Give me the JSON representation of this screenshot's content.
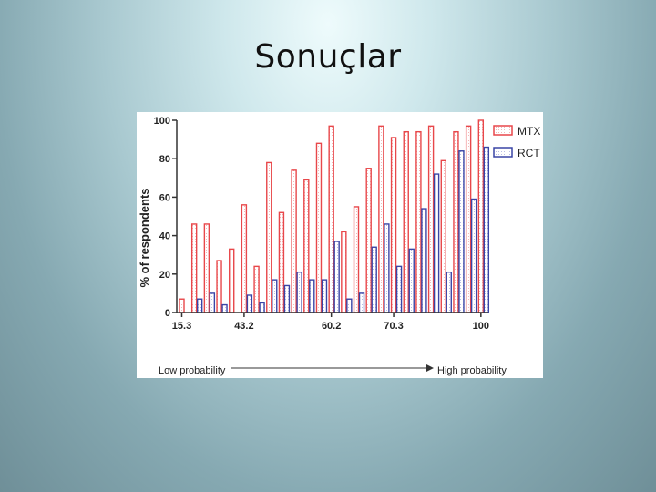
{
  "slide": {
    "title": "Sonuçlar"
  },
  "chart_data": {
    "type": "bar",
    "title": "",
    "xlabel": "",
    "ylabel": "% of respondents",
    "ylim": [
      0,
      100
    ],
    "yticks": [
      "0",
      "20",
      "40",
      "60",
      "80",
      "100"
    ],
    "xticks": [
      {
        "label": "15.3",
        "index": 0
      },
      {
        "label": "43.2",
        "index": 5
      },
      {
        "label": "60.2",
        "index": 12
      },
      {
        "label": "70.3",
        "index": 17
      },
      {
        "label": "100",
        "index": 24
      }
    ],
    "series": [
      {
        "name": "MTX",
        "color": "#e8474a",
        "values": [
          7,
          46,
          46,
          27,
          33,
          56,
          24,
          78,
          52,
          74,
          69,
          88,
          97,
          42,
          55,
          75,
          97,
          91,
          94,
          94,
          97,
          79,
          94,
          97,
          100
        ]
      },
      {
        "name": "RCT",
        "color": "#3a45a6",
        "values": [
          0,
          7,
          10,
          4,
          0,
          9,
          5,
          17,
          14,
          21,
          17,
          17,
          37,
          7,
          10,
          34,
          46,
          24,
          33,
          54,
          72,
          21,
          84,
          59,
          86
        ]
      }
    ],
    "legend_position": "top-right",
    "grid": false,
    "probability_axis": {
      "low_label": "Low probability",
      "high_label": "High probability"
    }
  }
}
